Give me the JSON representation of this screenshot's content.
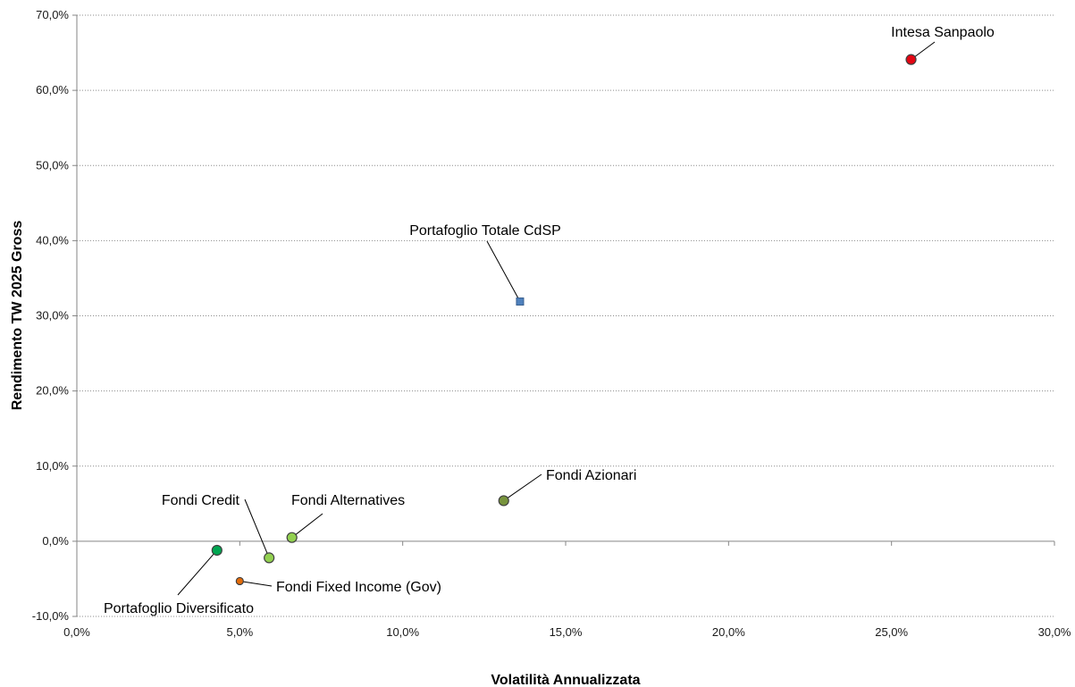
{
  "chart_data": {
    "type": "scatter",
    "title": "",
    "xlabel": "Volatilità Annualizzata",
    "ylabel": "Rendimento TW 2025 Gross",
    "xlim": [
      0,
      0.3
    ],
    "ylim": [
      -0.1,
      0.7
    ],
    "x_ticks": [
      0,
      0.05,
      0.1,
      0.15,
      0.2,
      0.25,
      0.3
    ],
    "x_tick_labels": [
      "0,0%",
      "5,0%",
      "10,0%",
      "15,0%",
      "20,0%",
      "25,0%",
      "30,0%"
    ],
    "y_ticks": [
      -0.1,
      0,
      0.1,
      0.2,
      0.3,
      0.4,
      0.5,
      0.6,
      0.7
    ],
    "y_tick_labels": [
      "-10,0%",
      "0,0%",
      "10,0%",
      "20,0%",
      "30,0%",
      "40,0%",
      "50,0%",
      "60,0%",
      "70,0%"
    ],
    "grid": "horizontal-dotted",
    "legend": "none",
    "points": [
      {
        "label": "Intesa Sanpaolo",
        "x": 0.256,
        "y": 0.641,
        "marker": "circle",
        "color": "#e30613",
        "size": "large"
      },
      {
        "label": "Portafoglio Totale CdSP",
        "x": 0.136,
        "y": 0.319,
        "marker": "square",
        "color": "#4f81bd",
        "size": "small"
      },
      {
        "label": "Fondi Azionari",
        "x": 0.131,
        "y": 0.054,
        "marker": "circle",
        "color": "#77933c",
        "size": "large"
      },
      {
        "label": "Fondi Alternatives",
        "x": 0.066,
        "y": 0.005,
        "marker": "circle",
        "color": "#92d050",
        "size": "large"
      },
      {
        "label": "Fondi Credit",
        "x": 0.059,
        "y": -0.022,
        "marker": "circle",
        "color": "#92d050",
        "size": "large"
      },
      {
        "label": "Portafoglio Diversificato",
        "x": 0.043,
        "y": -0.012,
        "marker": "circle",
        "color": "#00a651",
        "size": "large"
      },
      {
        "label": "Fondi Fixed Income (Gov)",
        "x": 0.05,
        "y": -0.053,
        "marker": "circle",
        "color": "#e46c0a",
        "size": "small"
      }
    ]
  }
}
